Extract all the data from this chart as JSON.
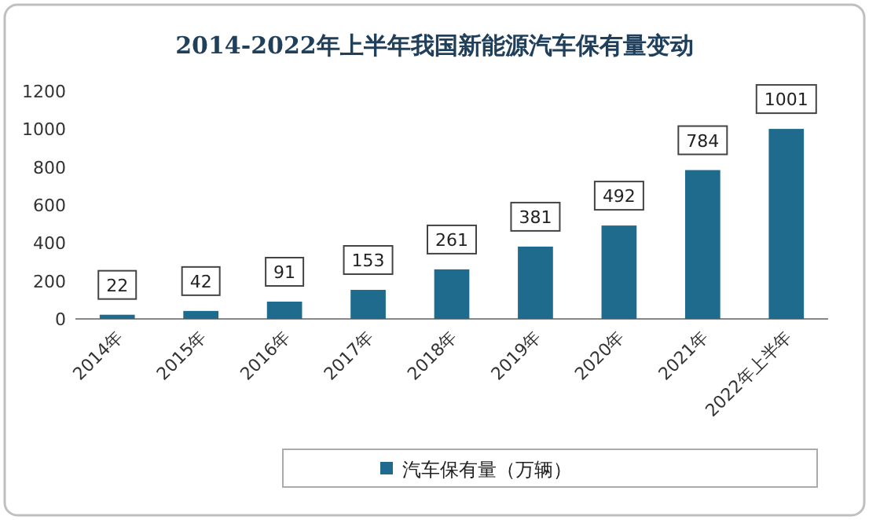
{
  "chart_data": {
    "type": "bar",
    "title": "2014-2022年上半年我国新能源汽车保有量变动",
    "categories": [
      "2014年",
      "2015年",
      "2016年",
      "2017年",
      "2018年",
      "2019年",
      "2020年",
      "2021年",
      "2022年上半年"
    ],
    "series": [
      {
        "name": "汽车保有量（万辆）",
        "color": "#1f6b8e",
        "values": [
          22,
          42,
          91,
          153,
          261,
          381,
          492,
          784,
          1001
        ]
      }
    ],
    "ylim": [
      0,
      1200
    ],
    "yticks": [
      0,
      200,
      400,
      600,
      800,
      1000,
      1200
    ],
    "data_labels": true,
    "legend": "bottom",
    "grid": false
  }
}
